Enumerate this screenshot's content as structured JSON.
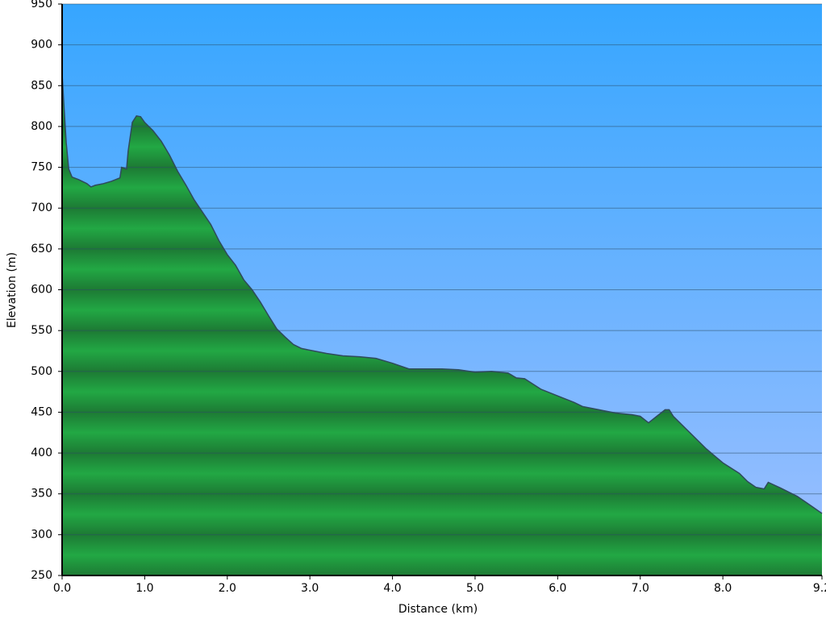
{
  "chart_data": {
    "type": "area",
    "xlabel": "Distance (km)",
    "ylabel": "Elevation (m)",
    "x": [
      0.0,
      0.02,
      0.05,
      0.08,
      0.12,
      0.2,
      0.3,
      0.35,
      0.4,
      0.5,
      0.6,
      0.7,
      0.72,
      0.78,
      0.8,
      0.85,
      0.9,
      0.95,
      1.0,
      1.1,
      1.2,
      1.3,
      1.4,
      1.5,
      1.6,
      1.7,
      1.8,
      1.9,
      2.0,
      2.1,
      2.2,
      2.3,
      2.4,
      2.5,
      2.6,
      2.7,
      2.8,
      2.9,
      3.0,
      3.2,
      3.4,
      3.6,
      3.8,
      4.0,
      4.2,
      4.4,
      4.6,
      4.8,
      5.0,
      5.2,
      5.4,
      5.5,
      5.6,
      5.8,
      6.0,
      6.2,
      6.3,
      6.5,
      6.7,
      6.9,
      7.0,
      7.1,
      7.2,
      7.3,
      7.35,
      7.4,
      7.6,
      7.8,
      8.0,
      8.2,
      8.3,
      8.4,
      8.5,
      8.55,
      8.7,
      8.9,
      9.0,
      9.1,
      9.2
    ],
    "series": [
      {
        "color": "#22a844",
        "values": [
          865,
          830,
          780,
          748,
          738,
          735,
          730,
          726,
          728,
          730,
          733,
          737,
          750,
          748,
          770,
          805,
          813,
          812,
          805,
          795,
          782,
          765,
          745,
          728,
          710,
          695,
          680,
          660,
          643,
          630,
          612,
          600,
          585,
          568,
          552,
          542,
          533,
          528,
          526,
          522,
          519,
          518,
          516,
          510,
          503,
          503,
          503,
          502,
          499,
          500,
          498,
          492,
          491,
          478,
          470,
          462,
          457,
          453,
          449,
          447,
          445,
          437,
          445,
          453,
          453,
          445,
          425,
          405,
          388,
          375,
          365,
          358,
          356,
          364,
          357,
          347,
          340,
          333,
          326
        ]
      }
    ],
    "line_color": "#2f4a5c",
    "xlim": [
      0,
      9.2
    ],
    "ylim": [
      250,
      950
    ],
    "xticks": [
      {
        "value": 0,
        "label": "0.0"
      },
      {
        "value": 1,
        "label": "1.0"
      },
      {
        "value": 2,
        "label": "2.0"
      },
      {
        "value": 3,
        "label": "3.0"
      },
      {
        "value": 4,
        "label": "4.0"
      },
      {
        "value": 5,
        "label": "5.0"
      },
      {
        "value": 6,
        "label": "6.0"
      },
      {
        "value": 7,
        "label": "7.0"
      },
      {
        "value": 8,
        "label": "8.0"
      },
      9.2
    ],
    "yticks": [
      250,
      300,
      350,
      400,
      450,
      500,
      550,
      600,
      650,
      700,
      750,
      800,
      850,
      900,
      950
    ],
    "grid": true
  }
}
